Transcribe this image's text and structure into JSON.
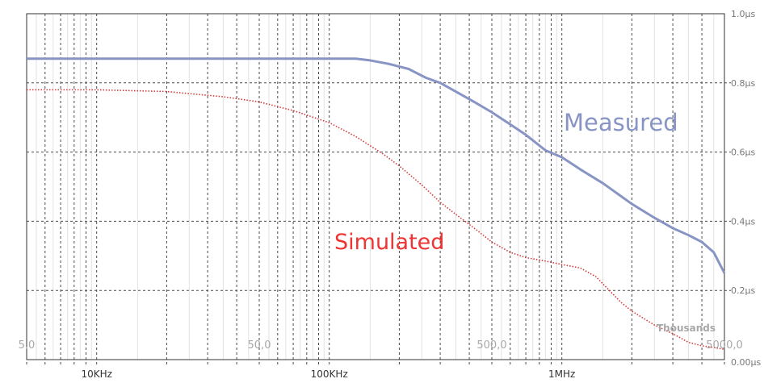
{
  "chart_data": {
    "type": "line",
    "x_scale": "log",
    "x_unit": "Hz",
    "xlim": [
      5000,
      5000000
    ],
    "ylim": [
      0,
      1.0
    ],
    "grid": true,
    "y_tick_labels": [
      "0.00µs",
      "0.2µs",
      "0.4µs",
      "0.6µs",
      "0.8µs",
      "1.0µs"
    ],
    "y_tick_values": [
      0,
      0.2,
      0.4,
      0.6,
      0.8,
      1.0
    ],
    "x_tick_labels": [
      "10KHz",
      "100KHz",
      "1MHz"
    ],
    "x_tick_values": [
      10000,
      100000,
      1000000
    ],
    "secondary_x_unit_label": "Thousands",
    "secondary_x_tick_labels": [
      "5,0",
      "50,0",
      "500,0",
      "5000,0"
    ],
    "secondary_x_tick_values": [
      5000,
      50000,
      500000,
      5000000
    ],
    "series": [
      {
        "name": "Measured",
        "color": "#8895c4",
        "style": "solid",
        "points": [
          [
            5000,
            0.87
          ],
          [
            50000,
            0.87
          ],
          [
            130000,
            0.87
          ],
          [
            150000,
            0.865
          ],
          [
            180000,
            0.855
          ],
          [
            220000,
            0.84
          ],
          [
            260000,
            0.815
          ],
          [
            300000,
            0.8
          ],
          [
            350000,
            0.775
          ],
          [
            420000,
            0.745
          ],
          [
            500000,
            0.715
          ],
          [
            600000,
            0.68
          ],
          [
            700000,
            0.65
          ],
          [
            850000,
            0.605
          ],
          [
            1000000,
            0.585
          ],
          [
            1200000,
            0.55
          ],
          [
            1500000,
            0.51
          ],
          [
            2000000,
            0.45
          ],
          [
            2500000,
            0.41
          ],
          [
            3000000,
            0.38
          ],
          [
            3500000,
            0.36
          ],
          [
            4000000,
            0.34
          ],
          [
            4500000,
            0.31
          ],
          [
            5000000,
            0.25
          ]
        ]
      },
      {
        "name": "Simulated",
        "color": "#d43a3a",
        "style": "dotted",
        "points": [
          [
            5000,
            0.78
          ],
          [
            10000,
            0.78
          ],
          [
            20000,
            0.775
          ],
          [
            35000,
            0.76
          ],
          [
            50000,
            0.745
          ],
          [
            70000,
            0.72
          ],
          [
            100000,
            0.685
          ],
          [
            130000,
            0.645
          ],
          [
            170000,
            0.595
          ],
          [
            200000,
            0.56
          ],
          [
            250000,
            0.505
          ],
          [
            300000,
            0.455
          ],
          [
            350000,
            0.42
          ],
          [
            420000,
            0.38
          ],
          [
            500000,
            0.34
          ],
          [
            600000,
            0.31
          ],
          [
            700000,
            0.295
          ],
          [
            850000,
            0.285
          ],
          [
            1000000,
            0.275
          ],
          [
            1200000,
            0.265
          ],
          [
            1400000,
            0.24
          ],
          [
            1600000,
            0.2
          ],
          [
            1800000,
            0.165
          ],
          [
            2000000,
            0.14
          ],
          [
            2500000,
            0.1
          ],
          [
            3000000,
            0.075
          ],
          [
            3500000,
            0.05
          ],
          [
            4000000,
            0.04
          ],
          [
            4500000,
            0.035
          ],
          [
            5000000,
            0.03
          ]
        ]
      }
    ],
    "annotations": [
      {
        "text": "Measured",
        "color": "#8895c4"
      },
      {
        "text": "Simulated",
        "color": "#ef3434"
      }
    ]
  }
}
